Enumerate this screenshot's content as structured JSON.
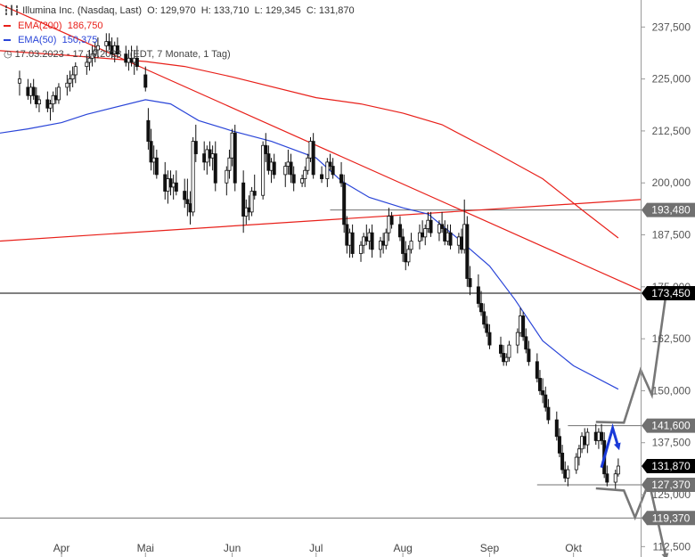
{
  "chart_data": {
    "type": "candlestick",
    "title": "Illumina Inc. (Nasdaq, Last)",
    "ohlc_header": {
      "open_label": "O:",
      "open": "129,970",
      "high_label": "H:",
      "high": "133,710",
      "low_label": "L:",
      "low": "129,345",
      "close_label": "C:",
      "close": "131,870"
    },
    "legend": [
      {
        "name": "EMA(200)",
        "value": "186,750",
        "color": "#e8201a"
      },
      {
        "name": "EMA(50)",
        "value": "150,375",
        "color": "#2a45d8"
      }
    ],
    "period": "17.03.2023 - 17.10.2023",
    "period_note": "(EDT, 7 Monate, 1 Tag)",
    "y_ticks": [
      {
        "value": 237.5,
        "label": "237,500"
      },
      {
        "value": 225,
        "label": "225,000"
      },
      {
        "value": 212.5,
        "label": "212,500"
      },
      {
        "value": 200,
        "label": "200,000"
      },
      {
        "value": 187.5,
        "label": "187,500"
      },
      {
        "value": 175,
        "label": "175,000"
      },
      {
        "value": 162.5,
        "label": "162,500"
      },
      {
        "value": 150,
        "label": "150,000"
      },
      {
        "value": 137.5,
        "label": "137,500"
      },
      {
        "value": 125,
        "label": "125,000"
      },
      {
        "value": 112.5,
        "label": "112,500"
      }
    ],
    "ylim": [
      110,
      244
    ],
    "x_months": [
      {
        "label": "Apr",
        "date": "2023-04-01"
      },
      {
        "label": "Mai",
        "date": "2023-05-01"
      },
      {
        "label": "Jun",
        "date": "2023-06-01"
      },
      {
        "label": "Jul",
        "date": "2023-07-01"
      },
      {
        "label": "Aug",
        "date": "2023-08-01"
      },
      {
        "label": "Sep",
        "date": "2023-09-01"
      },
      {
        "label": "Okt",
        "date": "2023-10-01"
      }
    ],
    "x_range": [
      "2023-03-10",
      "2023-10-25"
    ],
    "price_tags": [
      {
        "value": 193.48,
        "label": "193,480",
        "color": "#707070"
      },
      {
        "value": 173.45,
        "label": "173,450",
        "color": "#000000"
      },
      {
        "value": 141.6,
        "label": "141,600",
        "color": "#707070"
      },
      {
        "value": 131.87,
        "label": "131,870",
        "color": "#000000"
      },
      {
        "value": 127.37,
        "label": "127,370",
        "color": "#707070"
      },
      {
        "value": 119.37,
        "label": "119,370",
        "color": "#707070"
      }
    ],
    "horizontal_lines": [
      {
        "value": 173.45,
        "from": "2023-03-10",
        "color": "#000000"
      },
      {
        "value": 119.37,
        "from": "2023-03-10",
        "color": "#707070"
      },
      {
        "value": 193.48,
        "from": "2023-07-06",
        "color": "#707070"
      },
      {
        "value": 141.6,
        "from": "2023-09-29",
        "color": "#707070"
      },
      {
        "value": 127.37,
        "from": "2023-09-18",
        "color": "#707070"
      }
    ],
    "trendlines": [
      {
        "points": [
          [
            "2023-03-10",
            186.0
          ],
          [
            "2023-10-25",
            196.0
          ]
        ],
        "color": "#e8201a"
      },
      {
        "points": [
          [
            "2023-03-10",
            243.0
          ],
          [
            "2023-10-25",
            174.2
          ]
        ],
        "color": "#e8201a"
      }
    ],
    "ema200": [
      [
        "2023-03-10",
        231.8
      ],
      [
        "2023-04-01",
        230.8
      ],
      [
        "2023-05-01",
        229.2
      ],
      [
        "2023-05-15",
        228.0
      ],
      [
        "2023-06-01",
        225.5
      ],
      [
        "2023-07-01",
        220.5
      ],
      [
        "2023-07-17",
        219.0
      ],
      [
        "2023-08-01",
        216.8
      ],
      [
        "2023-08-15",
        214.0
      ],
      [
        "2023-09-01",
        208.0
      ],
      [
        "2023-09-20",
        201.0
      ],
      [
        "2023-10-05",
        193.0
      ],
      [
        "2023-10-17",
        186.75
      ]
    ],
    "ema50": [
      [
        "2023-03-10",
        212.0
      ],
      [
        "2023-03-20",
        213.0
      ],
      [
        "2023-04-01",
        214.5
      ],
      [
        "2023-04-10",
        216.5
      ],
      [
        "2023-05-01",
        220.0
      ],
      [
        "2023-05-10",
        219.0
      ],
      [
        "2023-05-20",
        215.0
      ],
      [
        "2023-06-01",
        212.5
      ],
      [
        "2023-06-15",
        210.0
      ],
      [
        "2023-07-01",
        206.0
      ],
      [
        "2023-07-10",
        200.5
      ],
      [
        "2023-07-20",
        196.5
      ],
      [
        "2023-08-01",
        194.0
      ],
      [
        "2023-08-10",
        192.5
      ],
      [
        "2023-08-20",
        187.0
      ],
      [
        "2023-09-01",
        180.0
      ],
      [
        "2023-09-10",
        172.0
      ],
      [
        "2023-09-20",
        162.0
      ],
      [
        "2023-10-01",
        156.0
      ],
      [
        "2023-10-17",
        150.375
      ]
    ],
    "candles": [
      [
        "2023-03-17",
        224,
        227,
        221,
        225
      ],
      [
        "2023-03-20",
        223,
        225,
        220,
        221
      ],
      [
        "2023-03-21",
        221,
        224,
        219,
        223
      ],
      [
        "2023-03-22",
        223,
        225,
        220,
        221
      ],
      [
        "2023-03-23",
        221,
        223,
        218,
        219
      ],
      [
        "2023-03-24",
        219,
        221,
        217,
        220
      ],
      [
        "2023-03-27",
        220,
        222,
        217,
        218
      ],
      [
        "2023-03-28",
        218,
        220,
        215,
        219
      ],
      [
        "2023-03-29",
        219,
        222,
        217,
        221
      ],
      [
        "2023-03-30",
        221,
        223,
        219,
        220
      ],
      [
        "2023-03-31",
        220,
        224,
        219,
        223
      ],
      [
        "2023-04-03",
        223,
        226,
        221,
        224
      ],
      [
        "2023-04-04",
        224,
        227,
        222,
        225
      ],
      [
        "2023-04-05",
        225,
        228,
        223,
        226
      ],
      [
        "2023-04-06",
        226,
        229,
        224,
        228
      ],
      [
        "2023-04-10",
        228,
        231,
        226,
        229
      ],
      [
        "2023-04-11",
        229,
        232,
        227,
        230
      ],
      [
        "2023-04-12",
        230,
        233,
        228,
        231
      ],
      [
        "2023-04-13",
        231,
        234,
        229,
        232
      ],
      [
        "2023-04-14",
        232,
        235,
        230,
        233
      ],
      [
        "2023-04-17",
        233,
        236,
        231,
        234
      ],
      [
        "2023-04-18",
        234,
        236,
        232,
        233
      ],
      [
        "2023-04-19",
        233,
        235,
        230,
        231
      ],
      [
        "2023-04-20",
        231,
        234,
        229,
        233
      ],
      [
        "2023-04-21",
        233,
        235,
        230,
        231
      ],
      [
        "2023-04-24",
        231,
        233,
        228,
        229
      ],
      [
        "2023-04-25",
        229,
        232,
        227,
        230
      ],
      [
        "2023-04-26",
        230,
        233,
        228,
        229
      ],
      [
        "2023-04-27",
        229,
        232,
        226,
        230
      ],
      [
        "2023-04-28",
        230,
        233,
        227,
        228
      ],
      [
        "2023-05-01",
        226,
        228,
        222,
        223
      ],
      [
        "2023-05-02",
        215,
        218,
        208,
        210
      ],
      [
        "2023-05-03",
        210,
        213,
        203,
        205
      ],
      [
        "2023-05-04",
        205,
        209,
        202,
        206
      ],
      [
        "2023-05-05",
        206,
        208,
        201,
        202
      ],
      [
        "2023-05-08",
        202,
        205,
        196,
        198
      ],
      [
        "2023-05-09",
        198,
        203,
        195,
        201
      ],
      [
        "2023-05-10",
        201,
        203,
        197,
        199
      ],
      [
        "2023-05-11",
        199,
        202,
        196,
        200
      ],
      [
        "2023-05-12",
        200,
        203,
        197,
        198
      ],
      [
        "2023-05-15",
        198,
        201,
        194,
        196
      ],
      [
        "2023-05-16",
        196,
        201,
        192,
        195
      ],
      [
        "2023-05-17",
        195,
        198,
        190,
        193
      ],
      [
        "2023-05-18",
        193,
        211,
        192,
        210
      ],
      [
        "2023-05-19",
        210,
        214,
        205,
        207
      ],
      [
        "2023-05-22",
        207,
        210,
        203,
        205
      ],
      [
        "2023-05-23",
        205,
        209,
        202,
        208
      ],
      [
        "2023-05-24",
        208,
        210,
        204,
        206
      ],
      [
        "2023-05-25",
        206,
        209,
        203,
        207
      ],
      [
        "2023-05-26",
        207,
        210,
        198,
        200
      ],
      [
        "2023-05-30",
        200,
        204,
        197,
        203
      ],
      [
        "2023-05-31",
        203,
        208,
        201,
        206
      ],
      [
        "2023-06-01",
        206,
        213,
        204,
        212
      ],
      [
        "2023-06-02",
        212,
        214,
        198,
        200
      ],
      [
        "2023-06-05",
        200,
        203,
        188,
        192
      ],
      [
        "2023-06-06",
        192,
        196,
        190,
        194
      ],
      [
        "2023-06-07",
        194,
        197,
        191,
        193
      ],
      [
        "2023-06-08",
        193,
        199,
        192,
        198
      ],
      [
        "2023-06-09",
        198,
        202,
        196,
        197
      ],
      [
        "2023-06-12",
        197,
        210,
        196,
        209
      ],
      [
        "2023-06-13",
        209,
        212,
        205,
        207
      ],
      [
        "2023-06-14",
        207,
        209,
        202,
        203
      ],
      [
        "2023-06-15",
        203,
        206,
        200,
        205
      ],
      [
        "2023-06-16",
        205,
        207,
        201,
        202
      ],
      [
        "2023-06-20",
        202,
        205,
        199,
        204
      ],
      [
        "2023-06-21",
        204,
        208,
        202,
        205
      ],
      [
        "2023-06-22",
        205,
        207,
        200,
        202
      ],
      [
        "2023-06-23",
        202,
        204,
        198,
        200
      ],
      [
        "2023-06-26",
        200,
        202,
        199,
        201
      ],
      [
        "2023-06-27",
        201,
        204,
        199,
        203
      ],
      [
        "2023-06-28",
        203,
        207,
        202,
        206
      ],
      [
        "2023-06-29",
        206,
        211,
        205,
        210
      ],
      [
        "2023-06-30",
        210,
        212,
        201,
        202
      ],
      [
        "2023-07-03",
        202,
        204,
        200,
        201
      ],
      [
        "2023-07-05",
        201,
        206,
        199,
        205
      ],
      [
        "2023-07-06",
        205,
        207,
        203,
        204
      ],
      [
        "2023-07-07",
        204,
        206,
        201,
        202
      ],
      [
        "2023-07-10",
        202,
        205,
        199,
        200
      ],
      [
        "2023-07-11",
        200,
        202,
        188,
        190
      ],
      [
        "2023-07-12",
        190,
        192,
        183,
        185
      ],
      [
        "2023-07-13",
        185,
        189,
        182,
        188
      ],
      [
        "2023-07-14",
        188,
        190,
        182,
        183
      ],
      [
        "2023-07-17",
        183,
        186,
        181,
        185
      ],
      [
        "2023-07-18",
        185,
        188,
        183,
        187
      ],
      [
        "2023-07-19",
        187,
        190,
        185,
        186
      ],
      [
        "2023-07-20",
        186,
        189,
        184,
        188
      ],
      [
        "2023-07-21",
        188,
        190,
        182,
        184
      ],
      [
        "2023-07-24",
        184,
        187,
        182,
        186
      ],
      [
        "2023-07-25",
        186,
        188,
        183,
        185
      ],
      [
        "2023-07-26",
        185,
        189,
        184,
        188
      ],
      [
        "2023-07-27",
        188,
        194,
        186,
        192
      ],
      [
        "2023-07-28",
        192,
        193,
        189,
        190
      ],
      [
        "2023-07-31",
        190,
        192,
        186,
        187
      ],
      [
        "2023-08-01",
        187,
        189,
        181,
        183
      ],
      [
        "2023-08-02",
        183,
        186,
        179,
        181
      ],
      [
        "2023-08-03",
        181,
        185,
        180,
        184
      ],
      [
        "2023-08-04",
        184,
        188,
        183,
        186
      ],
      [
        "2023-08-07",
        186,
        190,
        184,
        188
      ],
      [
        "2023-08-08",
        188,
        191,
        186,
        187
      ],
      [
        "2023-08-09",
        187,
        190,
        185,
        189
      ],
      [
        "2023-08-10",
        189,
        193,
        188,
        191
      ],
      [
        "2023-08-11",
        191,
        193,
        187,
        188
      ],
      [
        "2023-08-14",
        188,
        191,
        186,
        190
      ],
      [
        "2023-08-15",
        190,
        193,
        188,
        189
      ],
      [
        "2023-08-16",
        189,
        191,
        185,
        186
      ],
      [
        "2023-08-17",
        186,
        190,
        185,
        188
      ],
      [
        "2023-08-18",
        188,
        190,
        184,
        185
      ],
      [
        "2023-08-21",
        185,
        188,
        183,
        187
      ],
      [
        "2023-08-22",
        187,
        189,
        183,
        184
      ],
      [
        "2023-08-23",
        184,
        196,
        183,
        190
      ],
      [
        "2023-08-24",
        190,
        192,
        175,
        177
      ],
      [
        "2023-08-25",
        177,
        180,
        173,
        175
      ],
      [
        "2023-08-28",
        175,
        178,
        170,
        171
      ],
      [
        "2023-08-29",
        171,
        174,
        168,
        169
      ],
      [
        "2023-08-30",
        169,
        171,
        165,
        166
      ],
      [
        "2023-08-31",
        166,
        168,
        163,
        164
      ],
      [
        "2023-09-01",
        164,
        166,
        160,
        161
      ],
      [
        "2023-09-05",
        161,
        163,
        158,
        159
      ],
      [
        "2023-09-06",
        159,
        161,
        156,
        157
      ],
      [
        "2023-09-07",
        157,
        159,
        156,
        158
      ],
      [
        "2023-09-08",
        158,
        162,
        157,
        161
      ],
      [
        "2023-09-11",
        161,
        165,
        159,
        164
      ],
      [
        "2023-09-12",
        164,
        170,
        163,
        168
      ],
      [
        "2023-09-13",
        168,
        169,
        162,
        163
      ],
      [
        "2023-09-14",
        163,
        165,
        159,
        160
      ],
      [
        "2023-09-15",
        160,
        162,
        156,
        157
      ],
      [
        "2023-09-18",
        157,
        159,
        152,
        153
      ],
      [
        "2023-09-19",
        153,
        155,
        149,
        150
      ],
      [
        "2023-09-20",
        150,
        153,
        147,
        149
      ],
      [
        "2023-09-21",
        149,
        151,
        145,
        146
      ],
      [
        "2023-09-22",
        146,
        148,
        142,
        143
      ],
      [
        "2023-09-25",
        143,
        145,
        138,
        139
      ],
      [
        "2023-09-26",
        139,
        141,
        134,
        135
      ],
      [
        "2023-09-27",
        135,
        137,
        130,
        131
      ],
      [
        "2023-09-28",
        131,
        133,
        128,
        129
      ],
      [
        "2023-09-29",
        129,
        132,
        127,
        131
      ],
      [
        "2023-10-02",
        131,
        135,
        130,
        134
      ],
      [
        "2023-10-03",
        134,
        137,
        132,
        136
      ],
      [
        "2023-10-04",
        136,
        140,
        135,
        139
      ],
      [
        "2023-10-05",
        139,
        141,
        136,
        137
      ],
      [
        "2023-10-06",
        137,
        141,
        135,
        140
      ],
      [
        "2023-10-09",
        140,
        142,
        137,
        138
      ],
      [
        "2023-10-10",
        138,
        141,
        136,
        140
      ],
      [
        "2023-10-11",
        140,
        142,
        137,
        138
      ],
      [
        "2023-10-12",
        138,
        140,
        129,
        130
      ],
      [
        "2023-10-13",
        130,
        132,
        127,
        128
      ],
      [
        "2023-10-16",
        128,
        131,
        126,
        130
      ],
      [
        "2023-10-17",
        129.97,
        133.71,
        129.345,
        131.87
      ]
    ],
    "scenario_arrows": [
      {
        "color": "#777777",
        "points": [
          [
            "2023-10-09",
            142.5
          ],
          [
            "2023-10-19",
            142.3
          ],
          [
            "2023-10-25",
            155.0
          ],
          [
            "2023-10-29",
            149.0
          ],
          [
            "2023-11-03",
            173.0
          ]
        ]
      },
      {
        "color": "#777777",
        "points": [
          [
            "2023-10-09",
            126.5
          ],
          [
            "2023-10-19",
            126.0
          ],
          [
            "2023-10-23",
            119.5
          ],
          [
            "2023-10-28",
            128.0
          ],
          [
            "2023-11-03",
            110.0
          ]
        ]
      },
      {
        "color": "#1a3ad8",
        "points": [
          [
            "2023-10-11",
            131.5
          ],
          [
            "2023-10-15",
            141.0
          ],
          [
            "2023-10-17",
            136.5
          ]
        ]
      }
    ]
  }
}
